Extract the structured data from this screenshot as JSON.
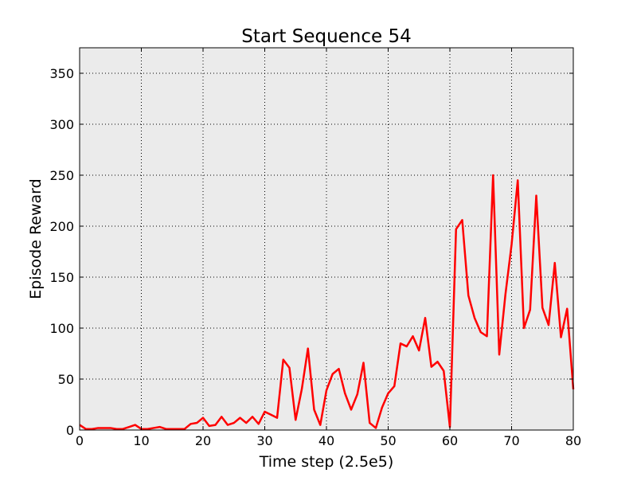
{
  "colors": {
    "background": "#ffffff",
    "plot_background": "#ebebeb",
    "series_line": "#ff0000",
    "grid": "#000000",
    "axis": "#000000"
  },
  "chart_data": {
    "type": "line",
    "title": "Start Sequence 54",
    "xlabel": "Time step (2.5e5)",
    "ylabel": "Episode Reward",
    "xlim": [
      0,
      80
    ],
    "ylim": [
      0,
      375
    ],
    "xticks": [
      0,
      10,
      20,
      30,
      40,
      50,
      60,
      70,
      80
    ],
    "yticks": [
      0,
      50,
      100,
      150,
      200,
      250,
      300,
      350
    ],
    "xtick_labels": [
      "0",
      "10",
      "20",
      "30",
      "40",
      "50",
      "60",
      "70",
      "80"
    ],
    "ytick_labels": [
      "0",
      "50",
      "100",
      "150",
      "200",
      "250",
      "300",
      "350"
    ],
    "grid": true,
    "grid_style": "dotted",
    "legend": "none",
    "series": [
      {
        "color": "#ff0000",
        "x": [
          0,
          1,
          2,
          3,
          4,
          5,
          6,
          7,
          8,
          9,
          10,
          11,
          12,
          13,
          14,
          15,
          16,
          17,
          18,
          19,
          20,
          21,
          22,
          23,
          24,
          25,
          26,
          27,
          28,
          29,
          30,
          31,
          32,
          33,
          34,
          35,
          36,
          37,
          38,
          39,
          40,
          41,
          42,
          43,
          44,
          45,
          46,
          47,
          48,
          49,
          50,
          51,
          52,
          53,
          54,
          55,
          56,
          57,
          58,
          59,
          60,
          61,
          62,
          63,
          64,
          65,
          66,
          67,
          68,
          69,
          70,
          71,
          72,
          73,
          74,
          75,
          76,
          77,
          78,
          79,
          80
        ],
        "y": [
          5,
          1,
          1,
          2,
          2,
          2,
          1,
          1,
          3,
          5,
          1,
          1,
          2,
          3,
          1,
          1,
          1,
          1,
          6,
          7,
          12,
          4,
          5,
          13,
          5,
          7,
          12,
          7,
          13,
          6,
          18,
          15,
          12,
          69,
          61,
          10,
          40,
          80,
          20,
          5,
          39,
          55,
          60,
          36,
          20,
          35,
          66,
          7,
          2,
          22,
          36,
          43,
          85,
          82,
          92,
          78,
          110,
          62,
          67,
          58,
          3,
          197,
          206,
          132,
          110,
          96,
          92,
          250,
          74,
          133,
          182,
          245,
          100,
          118,
          230,
          120,
          103,
          164,
          91,
          119,
          40
        ]
      }
    ]
  }
}
